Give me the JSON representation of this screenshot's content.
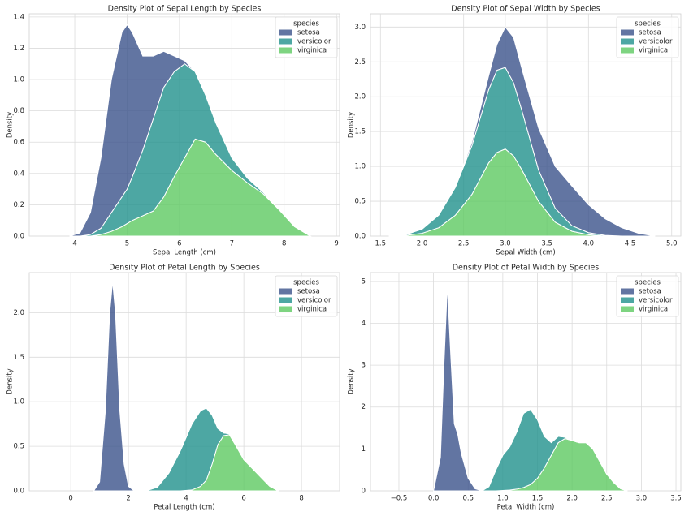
{
  "chart_data": [
    {
      "type": "area",
      "stacked": true,
      "title": "Density Plot of Sepal Length by Species",
      "x_label": "Sepal Length (cm)",
      "y_label": "Density",
      "legend_title": "species",
      "legend": "upper right",
      "grid": true,
      "x": [
        3.9,
        4.1,
        4.3,
        4.5,
        4.7,
        4.9,
        5.0,
        5.1,
        5.3,
        5.5,
        5.7,
        5.9,
        6.1,
        6.3,
        6.5,
        6.7,
        7.0,
        7.3,
        7.6,
        7.9,
        8.2,
        8.5
      ],
      "series": [
        {
          "name": "setosa",
          "color": "#3b528b",
          "values": [
            0,
            0.02,
            0.14,
            0.45,
            0.85,
            1.05,
            1.05,
            0.92,
            0.6,
            0.4,
            0.23,
            0.1,
            0.02,
            0,
            0,
            0,
            0,
            0,
            0,
            0,
            0,
            0
          ]
        },
        {
          "name": "versicolor",
          "color": "#21918c",
          "values": [
            0,
            0,
            0.01,
            0.04,
            0.12,
            0.19,
            0.22,
            0.28,
            0.42,
            0.59,
            0.7,
            0.67,
            0.6,
            0.43,
            0.3,
            0.2,
            0.08,
            0.03,
            0.01,
            0,
            0,
            0
          ]
        },
        {
          "name": "virginica",
          "color": "#5ec962",
          "values": [
            0,
            0,
            0,
            0.01,
            0.03,
            0.06,
            0.08,
            0.1,
            0.13,
            0.16,
            0.25,
            0.38,
            0.5,
            0.62,
            0.6,
            0.52,
            0.42,
            0.34,
            0.27,
            0.17,
            0.06,
            0
          ]
        }
      ],
      "xlim": [
        3.13,
        9.06
      ],
      "xticks": [
        4,
        5,
        6,
        7,
        8,
        9
      ],
      "ylim": [
        0,
        1.42
      ],
      "yticks": [
        {
          "value": 0,
          "label": "0.0"
        },
        0.2,
        0.4,
        0.6,
        0.8,
        {
          "value": 1,
          "label": "1.0"
        },
        1.2,
        1.4
      ]
    },
    {
      "type": "area",
      "stacked": true,
      "title": "Density Plot of Sepal Width by Species",
      "x_label": "Sepal Width (cm)",
      "y_label": "Density",
      "legend_title": "species",
      "legend": "upper right",
      "grid": true,
      "x": [
        1.6,
        1.8,
        2.0,
        2.2,
        2.4,
        2.6,
        2.8,
        2.9,
        3.0,
        3.1,
        3.2,
        3.4,
        3.6,
        3.8,
        4.0,
        4.2,
        4.4,
        4.6,
        4.8
      ],
      "series": [
        {
          "name": "setosa",
          "color": "#3b528b",
          "values": [
            0,
            0,
            0,
            0,
            0,
            0.05,
            0.2,
            0.37,
            0.58,
            0.65,
            0.6,
            0.6,
            0.6,
            0.57,
            0.4,
            0.24,
            0.12,
            0.04,
            0
          ]
        },
        {
          "name": "versicolor",
          "color": "#21918c",
          "values": [
            0,
            0.01,
            0.06,
            0.18,
            0.4,
            0.7,
            1.05,
            1.18,
            1.17,
            1.05,
            0.85,
            0.45,
            0.2,
            0.08,
            0.03,
            0.01,
            0,
            0,
            0
          ]
        },
        {
          "name": "virginica",
          "color": "#5ec962",
          "values": [
            0,
            0.01,
            0.04,
            0.12,
            0.3,
            0.6,
            1.05,
            1.2,
            1.25,
            1.15,
            0.95,
            0.5,
            0.2,
            0.07,
            0.02,
            0,
            0,
            0,
            0
          ]
        }
      ],
      "xlim": [
        1.38,
        5.11
      ],
      "xticks": [
        1.5,
        {
          "value": 2,
          "label": "2.0"
        },
        2.5,
        {
          "value": 3,
          "label": "3.0"
        },
        3.5,
        {
          "value": 4,
          "label": "4.0"
        },
        4.5,
        {
          "value": 5,
          "label": "5.0"
        }
      ],
      "ylim": [
        0,
        3.19
      ],
      "yticks": [
        {
          "value": 0,
          "label": "0.0"
        },
        0.5,
        {
          "value": 1,
          "label": "1.0"
        },
        1.5,
        {
          "value": 2,
          "label": "2.0"
        },
        2.5,
        {
          "value": 3,
          "label": "3.0"
        }
      ]
    },
    {
      "type": "area",
      "stacked": true,
      "title": "Density Plot of Petal Length by Species",
      "x_label": "Petal Length (cm)",
      "y_label": "Density",
      "legend_title": "species",
      "legend": "upper right",
      "grid": true,
      "x": [
        0.8,
        1.0,
        1.2,
        1.35,
        1.45,
        1.55,
        1.7,
        1.85,
        2.0,
        2.2,
        2.6,
        3.0,
        3.4,
        3.8,
        4.2,
        4.5,
        4.7,
        4.9,
        5.1,
        5.3,
        5.5,
        5.7,
        6.0,
        6.3,
        6.6,
        6.9,
        7.2
      ],
      "series": [
        {
          "name": "setosa",
          "color": "#3b528b",
          "values": [
            0,
            0.1,
            0.9,
            2.0,
            2.35,
            2.0,
            0.9,
            0.3,
            0.05,
            0,
            0,
            0,
            0,
            0,
            0,
            0,
            0,
            0,
            0,
            0,
            0,
            0,
            0,
            0,
            0,
            0,
            0
          ]
        },
        {
          "name": "versicolor",
          "color": "#21918c",
          "values": [
            0,
            0,
            0,
            0,
            0,
            0,
            0,
            0,
            0,
            0,
            0,
            0.04,
            0.2,
            0.45,
            0.74,
            0.85,
            0.81,
            0.55,
            0.18,
            0.03,
            0.01,
            0.01,
            0,
            0,
            0,
            0,
            0
          ]
        },
        {
          "name": "virginica",
          "color": "#5ec962",
          "values": [
            0,
            0,
            0,
            0,
            0,
            0,
            0,
            0,
            0,
            0,
            0,
            0,
            0,
            0,
            0.01,
            0.05,
            0.12,
            0.3,
            0.52,
            0.62,
            0.63,
            0.52,
            0.35,
            0.25,
            0.15,
            0.05,
            0
          ]
        }
      ],
      "xlim": [
        -1.44,
        9.32
      ],
      "xticks": [
        0,
        2,
        4,
        6,
        8
      ],
      "ylim": [
        0,
        2.45
      ],
      "yticks": [
        {
          "value": 0,
          "label": "0.0"
        },
        0.5,
        {
          "value": 1,
          "label": "1.0"
        },
        1.5,
        {
          "value": 2,
          "label": "2.0"
        }
      ]
    },
    {
      "type": "area",
      "stacked": true,
      "title": "Density Plot of Petal Width by Species",
      "x_label": "Petal Width (cm)",
      "y_label": "Density",
      "legend_title": "species",
      "legend": "upper right",
      "grid": true,
      "x": [
        0.0,
        0.1,
        0.15,
        0.2,
        0.25,
        0.3,
        0.35,
        0.4,
        0.5,
        0.6,
        0.7,
        0.8,
        0.9,
        1.0,
        1.1,
        1.2,
        1.3,
        1.4,
        1.5,
        1.6,
        1.7,
        1.8,
        1.9,
        2.0,
        2.1,
        2.2,
        2.3,
        2.4,
        2.5,
        2.6,
        2.7,
        2.8
      ],
      "series": [
        {
          "name": "setosa",
          "color": "#3b528b",
          "values": [
            0,
            0.8,
            3.0,
            4.9,
            3.2,
            1.6,
            1.35,
            0.9,
            0.3,
            0.05,
            0,
            0,
            0,
            0,
            0,
            0,
            0,
            0,
            0,
            0,
            0,
            0,
            0,
            0,
            0,
            0,
            0,
            0,
            0,
            0,
            0,
            0
          ]
        },
        {
          "name": "versicolor",
          "color": "#21918c",
          "values": [
            0,
            0,
            0,
            0,
            0,
            0,
            0,
            0,
            0,
            0,
            0,
            0.1,
            0.5,
            0.84,
            1.03,
            1.36,
            1.77,
            1.8,
            1.4,
            0.75,
            0.3,
            0.15,
            0.03,
            0,
            0,
            0,
            0,
            0,
            0,
            0,
            0,
            0
          ]
        },
        {
          "name": "virginica",
          "color": "#5ec962",
          "values": [
            0,
            0,
            0,
            0,
            0,
            0,
            0,
            0,
            0,
            0,
            0,
            0,
            0,
            0.01,
            0.02,
            0.04,
            0.08,
            0.15,
            0.3,
            0.55,
            0.85,
            1.15,
            1.25,
            1.2,
            1.15,
            1.15,
            1.0,
            0.7,
            0.4,
            0.2,
            0.05,
            0
          ]
        }
      ],
      "xlim": [
        -0.91,
        3.57
      ],
      "xticks": [
        {
          "value": -0.5,
          "label": "−0.5"
        },
        {
          "value": 0,
          "label": "0.0"
        },
        0.5,
        {
          "value": 1,
          "label": "1.0"
        },
        1.5,
        {
          "value": 2,
          "label": "2.0"
        },
        2.5,
        {
          "value": 3,
          "label": "3.0"
        },
        3.5
      ],
      "ylim": [
        0,
        5.21
      ],
      "yticks": [
        0,
        1,
        2,
        3,
        4,
        5
      ]
    }
  ]
}
